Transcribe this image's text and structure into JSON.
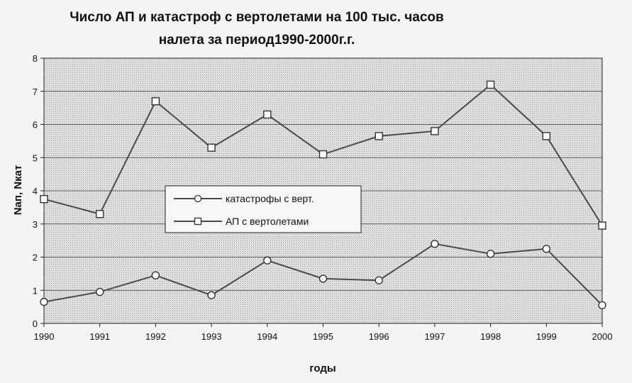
{
  "chart_data": {
    "type": "line",
    "title_line1": "Число АП и катастроф с вертолетами на 100 тыс. часов",
    "title_line2": "налета за период1990-2000г.г.",
    "xlabel": "годы",
    "ylabel": "Nап, Nкат",
    "x": [
      "1990",
      "1991",
      "1992",
      "1993",
      "1994",
      "1995",
      "1996",
      "1997",
      "1998",
      "1999",
      "2000"
    ],
    "ylim": [
      0,
      8
    ],
    "yticks": [
      "0",
      "1",
      "2",
      "3",
      "4",
      "5",
      "6",
      "7",
      "8"
    ],
    "grid": true,
    "legend_position": "center-left",
    "series": [
      {
        "name": "катастрофы с верт.",
        "marker": "circle",
        "values": [
          0.65,
          0.95,
          1.45,
          0.85,
          1.9,
          1.35,
          1.3,
          2.4,
          2.1,
          2.25,
          0.55
        ]
      },
      {
        "name": "АП с вертолетами",
        "marker": "square",
        "values": [
          3.75,
          3.3,
          6.7,
          5.3,
          6.3,
          5.1,
          5.65,
          5.8,
          7.2,
          5.65,
          2.95
        ]
      }
    ],
    "colors": {
      "line": "#4a4a4a",
      "plot_bg": "#dcdcdc",
      "grid": "#3a3a3a"
    }
  }
}
